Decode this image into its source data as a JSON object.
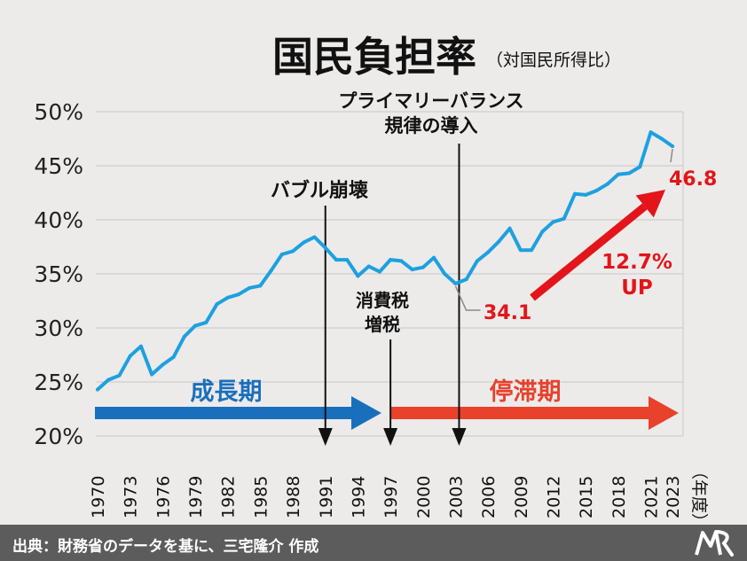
{
  "chart_data": {
    "type": "line",
    "title": "国民負担率",
    "subtitle": "（対国民所得比）",
    "unit_label": "（年度）",
    "ylim": [
      20,
      50
    ],
    "yticks": [
      "20%",
      "25%",
      "30%",
      "35%",
      "40%",
      "45%",
      "50%"
    ],
    "ytick_values": [
      20,
      25,
      30,
      35,
      40,
      45,
      50
    ],
    "xlim": [
      1970,
      2023
    ],
    "xticks": [
      "1970",
      "1973",
      "1976",
      "1979",
      "1982",
      "1985",
      "1988",
      "1991",
      "1994",
      "1997",
      "2000",
      "2003",
      "2006",
      "2009",
      "2012",
      "2015",
      "2018",
      "2021",
      "2023"
    ],
    "xtick_values": [
      1970,
      1973,
      1976,
      1979,
      1982,
      1985,
      1988,
      1991,
      1994,
      1997,
      2000,
      2003,
      2006,
      2009,
      2012,
      2015,
      2018,
      2021,
      2023
    ],
    "grid": true,
    "line_color": "#1ea0e0",
    "series": [
      {
        "x": [
          1970,
          1971,
          1972,
          1973,
          1974,
          1975,
          1976,
          1977,
          1978,
          1979,
          1980,
          1981,
          1982,
          1983,
          1984,
          1985,
          1986,
          1987,
          1988,
          1989,
          1990,
          1991,
          1992,
          1993,
          1994,
          1995,
          1996,
          1997,
          1998,
          1999,
          2000,
          2001,
          2002,
          2003,
          2004,
          2005,
          2006,
          2007,
          2008,
          2009,
          2010,
          2011,
          2012,
          2013,
          2014,
          2015,
          2016,
          2017,
          2018,
          2019,
          2020,
          2021,
          2022,
          2023
        ],
        "values": [
          24.3,
          25.2,
          25.6,
          27.4,
          28.3,
          25.7,
          26.6,
          27.3,
          29.2,
          30.2,
          30.5,
          32.2,
          32.8,
          33.1,
          33.7,
          33.9,
          35.3,
          36.8,
          37.1,
          37.9,
          38.4,
          37.4,
          36.3,
          36.3,
          34.8,
          35.7,
          35.2,
          36.3,
          36.2,
          35.4,
          35.6,
          36.5,
          35.0,
          34.1,
          34.5,
          36.2,
          37.0,
          38.0,
          39.2,
          37.2,
          37.2,
          38.9,
          39.8,
          40.1,
          42.4,
          42.3,
          42.7,
          43.3,
          44.2,
          44.3,
          44.9,
          48.1,
          47.5,
          46.8
        ]
      }
    ],
    "annotations": {
      "bubble": {
        "label": "バブル崩壊",
        "year": 1991
      },
      "tax": {
        "line1": "消費税",
        "line2": "増税",
        "year": 1997
      },
      "pb": {
        "line1": "プライマリーバランス",
        "line2": "規律の導入",
        "year": 2003
      }
    },
    "periods": [
      {
        "label": "成長期",
        "start": 1970,
        "end": 1996,
        "color": "#1a6fbc"
      },
      {
        "label": "停滞期",
        "start": 1998,
        "end": 2023,
        "color": "#e8412c"
      }
    ],
    "callouts": {
      "start_value": "34.1",
      "end_value": "46.8",
      "change_line1": "12.7%",
      "change_line2": "UP",
      "color": "#e3151a"
    }
  },
  "footer": {
    "source": "出典：財務省のデータを基に、三宅隆介 作成",
    "logo_icon": "mr-logo-icon"
  }
}
